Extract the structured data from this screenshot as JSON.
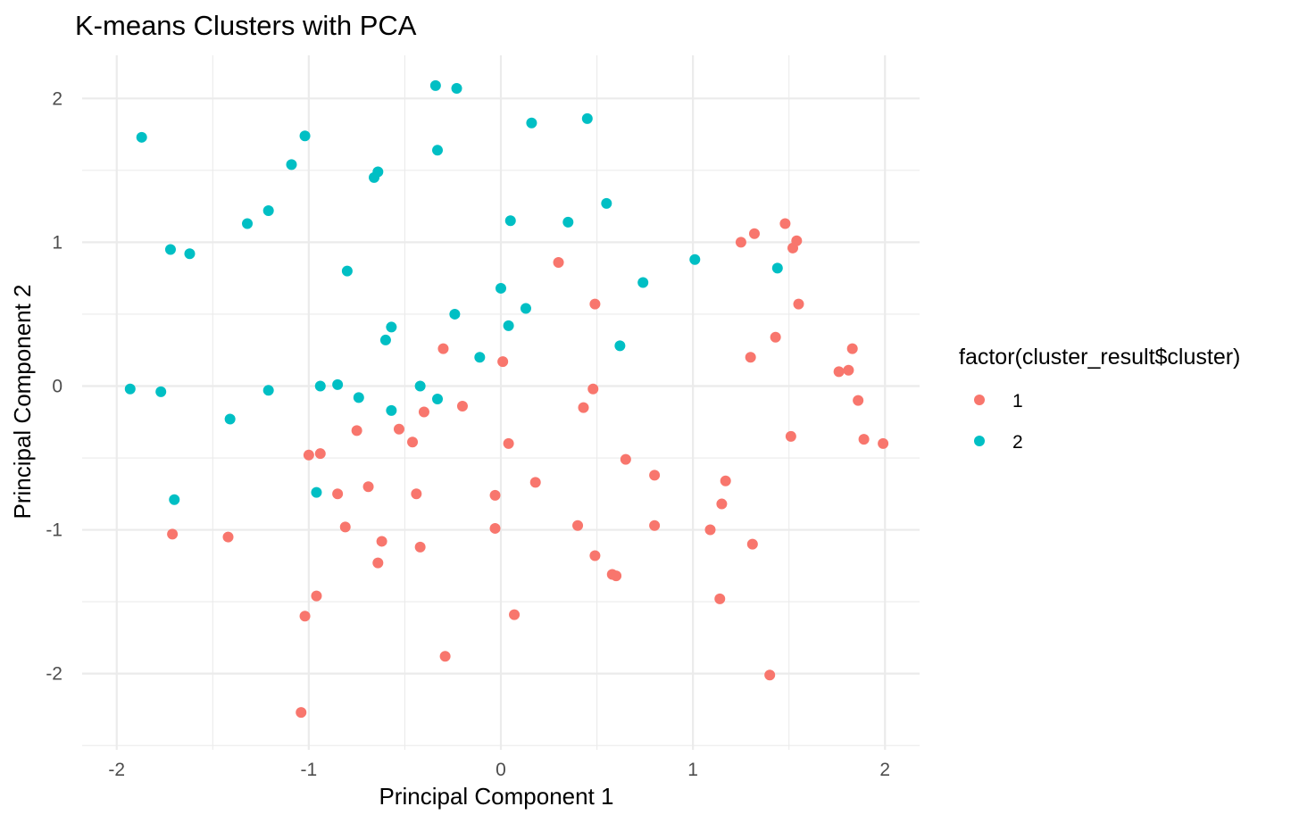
{
  "chart_data": {
    "type": "scatter",
    "title": "K-means Clusters with PCA",
    "xlabel": "Principal Component 1",
    "ylabel": "Principal Component 2",
    "xlim": [
      -2.18,
      2.18
    ],
    "ylim": [
      -2.53,
      2.3
    ],
    "x_ticks": [
      -2,
      -1,
      0,
      1,
      2
    ],
    "y_ticks": [
      -2,
      -1,
      0,
      1,
      2
    ],
    "x_tick_labels": [
      "-2",
      "-1",
      "0",
      "1",
      "2"
    ],
    "y_tick_labels": [
      "-2",
      "-1",
      "0",
      "1",
      "2"
    ],
    "grid": true,
    "legend": {
      "title": "factor(cluster_result$cluster)",
      "placement": "right"
    },
    "series": [
      {
        "name": "1",
        "color": "#f8766d",
        "points": [
          [
            -1.71,
            -1.03
          ],
          [
            -1.42,
            -1.05
          ],
          [
            -1.04,
            -2.27
          ],
          [
            -1.02,
            -1.6
          ],
          [
            -1.0,
            -0.48
          ],
          [
            -0.96,
            -1.46
          ],
          [
            -0.94,
            -0.47
          ],
          [
            -0.85,
            -0.75
          ],
          [
            -0.81,
            -0.98
          ],
          [
            -0.75,
            -0.31
          ],
          [
            -0.69,
            -0.7
          ],
          [
            -0.64,
            -1.23
          ],
          [
            -0.62,
            -1.08
          ],
          [
            -0.53,
            -0.3
          ],
          [
            -0.46,
            -0.39
          ],
          [
            -0.44,
            -0.75
          ],
          [
            -0.42,
            -1.12
          ],
          [
            -0.4,
            -0.18
          ],
          [
            -0.3,
            0.26
          ],
          [
            -0.29,
            -1.88
          ],
          [
            -0.2,
            -0.14
          ],
          [
            -0.03,
            -0.76
          ],
          [
            -0.03,
            -0.99
          ],
          [
            0.01,
            0.17
          ],
          [
            0.04,
            -0.4
          ],
          [
            0.07,
            -1.59
          ],
          [
            0.18,
            -0.67
          ],
          [
            0.3,
            0.86
          ],
          [
            0.4,
            -0.97
          ],
          [
            0.43,
            -0.15
          ],
          [
            0.48,
            -0.02
          ],
          [
            0.49,
            0.57
          ],
          [
            0.49,
            -1.18
          ],
          [
            0.58,
            -1.31
          ],
          [
            0.6,
            -1.32
          ],
          [
            0.65,
            -0.51
          ],
          [
            0.8,
            -0.62
          ],
          [
            0.8,
            -0.97
          ],
          [
            1.09,
            -1.0
          ],
          [
            1.14,
            -1.48
          ],
          [
            1.15,
            -0.82
          ],
          [
            1.17,
            -0.66
          ],
          [
            1.25,
            1.0
          ],
          [
            1.3,
            0.2
          ],
          [
            1.31,
            -1.1
          ],
          [
            1.32,
            1.06
          ],
          [
            1.4,
            -2.01
          ],
          [
            1.43,
            0.34
          ],
          [
            1.48,
            1.13
          ],
          [
            1.51,
            -0.35
          ],
          [
            1.52,
            0.96
          ],
          [
            1.54,
            1.01
          ],
          [
            1.55,
            0.57
          ],
          [
            1.76,
            0.1
          ],
          [
            1.81,
            0.11
          ],
          [
            1.83,
            0.26
          ],
          [
            1.86,
            -0.1
          ],
          [
            1.89,
            -0.37
          ],
          [
            1.99,
            -0.4
          ]
        ]
      },
      {
        "name": "2",
        "color": "#00bfc4",
        "points": [
          [
            -1.93,
            -0.02
          ],
          [
            -1.87,
            1.73
          ],
          [
            -1.77,
            -0.04
          ],
          [
            -1.72,
            0.95
          ],
          [
            -1.7,
            -0.79
          ],
          [
            -1.62,
            0.92
          ],
          [
            -1.41,
            -0.23
          ],
          [
            -1.32,
            1.13
          ],
          [
            -1.21,
            1.22
          ],
          [
            -1.21,
            -0.03
          ],
          [
            -1.09,
            1.54
          ],
          [
            -1.02,
            1.74
          ],
          [
            -0.96,
            -0.74
          ],
          [
            -0.94,
            0.0
          ],
          [
            -0.85,
            0.01
          ],
          [
            -0.8,
            0.8
          ],
          [
            -0.74,
            -0.08
          ],
          [
            -0.66,
            1.45
          ],
          [
            -0.64,
            1.49
          ],
          [
            -0.6,
            0.32
          ],
          [
            -0.57,
            0.41
          ],
          [
            -0.57,
            -0.17
          ],
          [
            -0.42,
            0.0
          ],
          [
            -0.34,
            2.09
          ],
          [
            -0.33,
            1.64
          ],
          [
            -0.33,
            -0.09
          ],
          [
            -0.24,
            0.5
          ],
          [
            -0.23,
            2.07
          ],
          [
            -0.11,
            0.2
          ],
          [
            0.0,
            0.68
          ],
          [
            0.04,
            0.42
          ],
          [
            0.05,
            1.15
          ],
          [
            0.13,
            0.54
          ],
          [
            0.16,
            1.83
          ],
          [
            0.35,
            1.14
          ],
          [
            0.45,
            1.86
          ],
          [
            0.55,
            1.27
          ],
          [
            0.62,
            0.28
          ],
          [
            0.74,
            0.72
          ],
          [
            1.01,
            0.88
          ],
          [
            1.44,
            0.82
          ]
        ]
      }
    ]
  }
}
